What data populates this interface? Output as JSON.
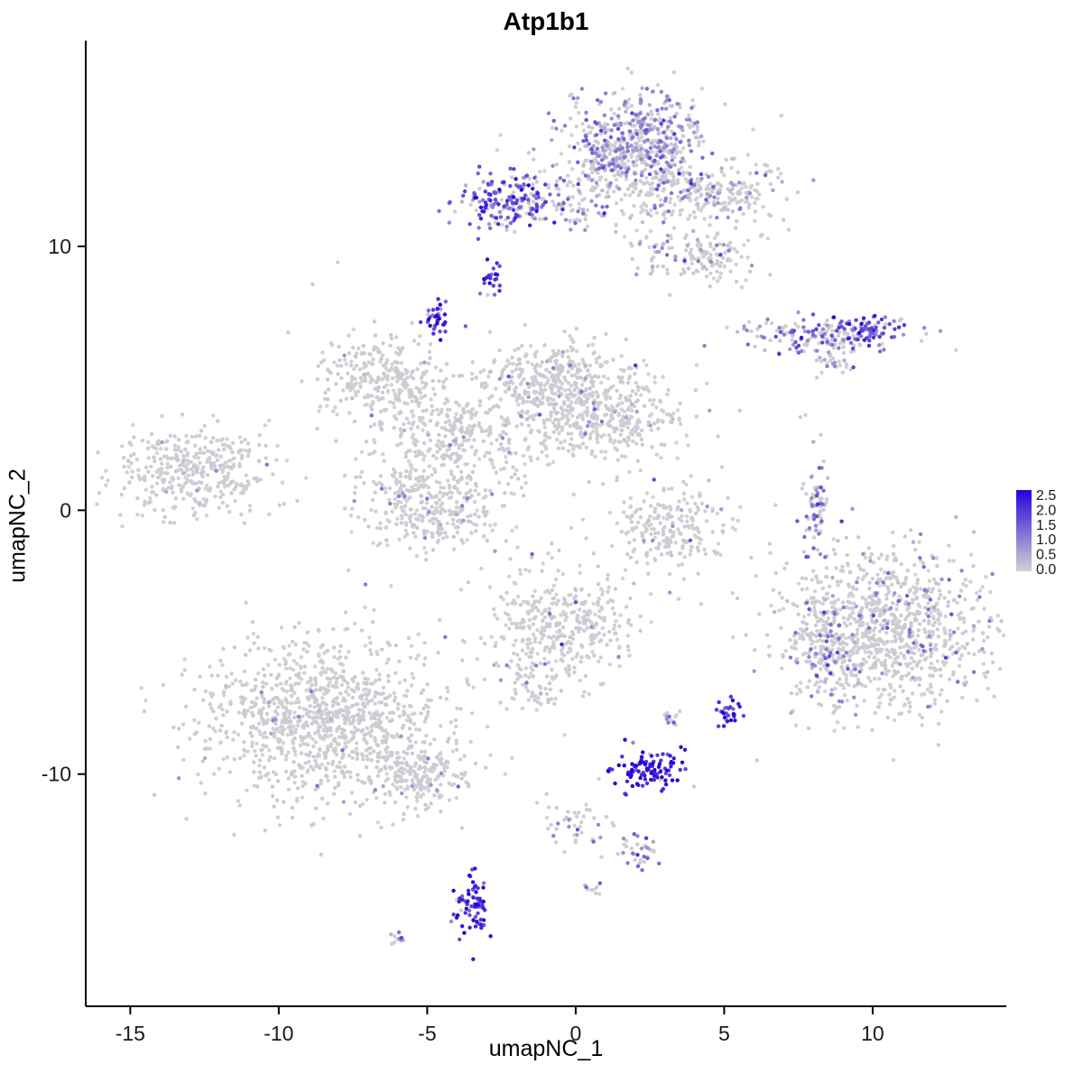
{
  "chart_data": {
    "type": "scatter",
    "title": "Atp1b1",
    "xlabel": "umapNC_1",
    "ylabel": "umapNC_2",
    "xlim": [
      -16.5,
      14.5
    ],
    "ylim": [
      -18.8,
      17.8
    ],
    "grid": false,
    "background": "#ffffff",
    "point_radius": 2.2,
    "x_ticks": [
      {
        "value": -15,
        "label": "-15"
      },
      {
        "value": -10,
        "label": "-10"
      },
      {
        "value": -5,
        "label": "-5"
      },
      {
        "value": 0,
        "label": "0"
      },
      {
        "value": 5,
        "label": "5"
      },
      {
        "value": 10,
        "label": "10"
      }
    ],
    "y_ticks": [
      {
        "value": 10,
        "label": "10"
      },
      {
        "value": 0,
        "label": "0"
      },
      {
        "value": -10,
        "label": "-10"
      }
    ],
    "legend": {
      "position": "right",
      "min": 0.0,
      "max": 2.5,
      "ticks": [
        {
          "value": 2.5,
          "label": "2.5"
        },
        {
          "value": 2.0,
          "label": "2.0"
        },
        {
          "value": 1.5,
          "label": "1.5"
        },
        {
          "value": 1.0,
          "label": "1.0"
        },
        {
          "value": 0.5,
          "label": "0.5"
        },
        {
          "value": 0.0,
          "label": "0.0"
        }
      ],
      "color_low": "#D3D3D3",
      "color_high": "#2703D8"
    },
    "clusters": [
      {
        "name": "top-core",
        "x": 2.0,
        "y": 14.0,
        "sx": 1.15,
        "sy": 0.9,
        "n": 520,
        "frac": 0.5,
        "mean": 0.85
      },
      {
        "name": "top-halo",
        "x": 2.4,
        "y": 12.4,
        "sx": 1.9,
        "sy": 0.75,
        "n": 270,
        "frac": 0.25,
        "mean": 0.7
      },
      {
        "name": "top-right-arm",
        "x": 5.0,
        "y": 11.9,
        "sx": 1.0,
        "sy": 0.55,
        "n": 130,
        "frac": 0.2,
        "mean": 0.7
      },
      {
        "name": "top-right-blob",
        "x": 4.7,
        "y": 9.7,
        "sx": 0.75,
        "sy": 0.5,
        "n": 110,
        "frac": 0.1,
        "mean": 0.7
      },
      {
        "name": "top-connector",
        "x": 2.7,
        "y": 10.3,
        "sx": 0.45,
        "sy": 1.0,
        "n": 60,
        "frac": 0.3,
        "mean": 0.8
      },
      {
        "name": "upper-left-purple",
        "x": -2.3,
        "y": 11.6,
        "sx": 0.85,
        "sy": 0.5,
        "n": 175,
        "frac": 0.8,
        "mean": 1.5
      },
      {
        "name": "upper-left-tail",
        "x": 0.2,
        "y": 11.4,
        "sx": 0.6,
        "sy": 0.3,
        "n": 40,
        "frac": 0.5,
        "mean": 1.0
      },
      {
        "name": "purple-dot-a",
        "x": -2.8,
        "y": 8.8,
        "sx": 0.16,
        "sy": 0.3,
        "n": 22,
        "frac": 0.95,
        "mean": 1.9
      },
      {
        "name": "purple-dot-b",
        "x": -4.6,
        "y": 7.3,
        "sx": 0.2,
        "sy": 0.35,
        "n": 35,
        "frac": 0.95,
        "mean": 2.0
      },
      {
        "name": "right-band",
        "x": 8.4,
        "y": 6.6,
        "sx": 1.4,
        "sy": 0.38,
        "n": 170,
        "frac": 0.55,
        "mean": 1.2
      },
      {
        "name": "right-band-tip",
        "x": 9.8,
        "y": 6.8,
        "sx": 0.45,
        "sy": 0.28,
        "n": 55,
        "frac": 0.9,
        "mean": 1.6
      },
      {
        "name": "right-band-tail",
        "x": 8.6,
        "y": 5.8,
        "sx": 0.35,
        "sy": 0.4,
        "n": 40,
        "frac": 0.2,
        "mean": 0.8
      },
      {
        "name": "mid-left-lobe",
        "x": -6.5,
        "y": 5.0,
        "sx": 1.05,
        "sy": 0.8,
        "n": 280,
        "frac": 0.03,
        "mean": 0.8
      },
      {
        "name": "mid-top-lobe",
        "x": -0.8,
        "y": 5.0,
        "sx": 1.2,
        "sy": 0.7,
        "n": 300,
        "frac": 0.05,
        "mean": 0.7
      },
      {
        "name": "mid-blob",
        "x": 0.7,
        "y": 3.6,
        "sx": 1.4,
        "sy": 0.85,
        "n": 450,
        "frac": 0.04,
        "mean": 0.7
      },
      {
        "name": "mid-connector",
        "x": -4.2,
        "y": 2.9,
        "sx": 1.3,
        "sy": 0.95,
        "n": 300,
        "frac": 0.04,
        "mean": 0.7
      },
      {
        "name": "mid-lower-lobe",
        "x": -4.8,
        "y": 0.2,
        "sx": 1.2,
        "sy": 0.95,
        "n": 350,
        "frac": 0.05,
        "mean": 0.8
      },
      {
        "name": "far-left",
        "x": -12.8,
        "y": 1.5,
        "sx": 1.3,
        "sy": 0.85,
        "n": 380,
        "frac": 0.02,
        "mean": 0.6
      },
      {
        "name": "crescent",
        "x": 3.2,
        "y": -0.7,
        "sx": 1.0,
        "sy": 0.8,
        "n": 220,
        "frac": 0.05,
        "mean": 0.7
      },
      {
        "name": "sliver",
        "x": 8.1,
        "y": 0.2,
        "sx": 0.25,
        "sy": 0.75,
        "n": 70,
        "frac": 0.5,
        "mean": 1.1
      },
      {
        "name": "bottom-right",
        "x": 10.5,
        "y": -4.6,
        "sx": 1.8,
        "sy": 1.5,
        "n": 1000,
        "frac": 0.1,
        "mean": 0.9
      },
      {
        "name": "bottom-right-edge",
        "x": 8.4,
        "y": -5.4,
        "sx": 0.55,
        "sy": 1.1,
        "n": 130,
        "frac": 0.35,
        "mean": 1.1
      },
      {
        "name": "bottom-center",
        "x": -0.4,
        "y": -4.3,
        "sx": 1.2,
        "sy": 1.1,
        "n": 380,
        "frac": 0.03,
        "mean": 0.7
      },
      {
        "name": "bottom-center-tail",
        "x": -1.5,
        "y": -6.6,
        "sx": 0.4,
        "sy": 0.55,
        "n": 60,
        "frac": 0.1,
        "mean": 0.8
      },
      {
        "name": "bottom-left",
        "x": -8.4,
        "y": -8.0,
        "sx": 2.0,
        "sy": 1.5,
        "n": 1100,
        "frac": 0.02,
        "mean": 0.7
      },
      {
        "name": "bottom-left-tail",
        "x": -5.1,
        "y": -10.1,
        "sx": 0.85,
        "sy": 0.6,
        "n": 180,
        "frac": 0.06,
        "mean": 0.8
      },
      {
        "name": "purple-major",
        "x": 2.4,
        "y": -9.8,
        "sx": 0.55,
        "sy": 0.4,
        "n": 100,
        "frac": 0.97,
        "mean": 2.2
      },
      {
        "name": "purple-pair",
        "x": 5.1,
        "y": -7.7,
        "sx": 0.22,
        "sy": 0.26,
        "n": 30,
        "frac": 0.92,
        "mean": 2.0
      },
      {
        "name": "tiny-mid",
        "x": 3.3,
        "y": -7.9,
        "sx": 0.18,
        "sy": 0.2,
        "n": 14,
        "frac": 0.5,
        "mean": 1.2
      },
      {
        "name": "trail",
        "x": 0.0,
        "y": -12.0,
        "sx": 0.55,
        "sy": 0.5,
        "n": 45,
        "frac": 0.3,
        "mean": 0.9
      },
      {
        "name": "small-lavender",
        "x": 2.2,
        "y": -12.8,
        "sx": 0.35,
        "sy": 0.3,
        "n": 35,
        "frac": 0.6,
        "mean": 1.1
      },
      {
        "name": "bottom-purple",
        "x": -3.5,
        "y": -14.9,
        "sx": 0.3,
        "sy": 0.65,
        "n": 70,
        "frac": 0.95,
        "mean": 2.1
      },
      {
        "name": "tiny-gray",
        "x": 0.7,
        "y": -14.4,
        "sx": 0.25,
        "sy": 0.2,
        "n": 9,
        "frac": 0.15,
        "mean": 0.7
      },
      {
        "name": "tiny-bottom",
        "x": -6.1,
        "y": -16.3,
        "sx": 0.2,
        "sy": 0.15,
        "n": 10,
        "frac": 0.4,
        "mean": 0.9
      },
      {
        "name": "sparse-singles",
        "x": 0.5,
        "y": -1.0,
        "sx": 6.5,
        "sy": 6.0,
        "n": 45,
        "frac": 0.25,
        "mean": 0.9
      }
    ]
  }
}
